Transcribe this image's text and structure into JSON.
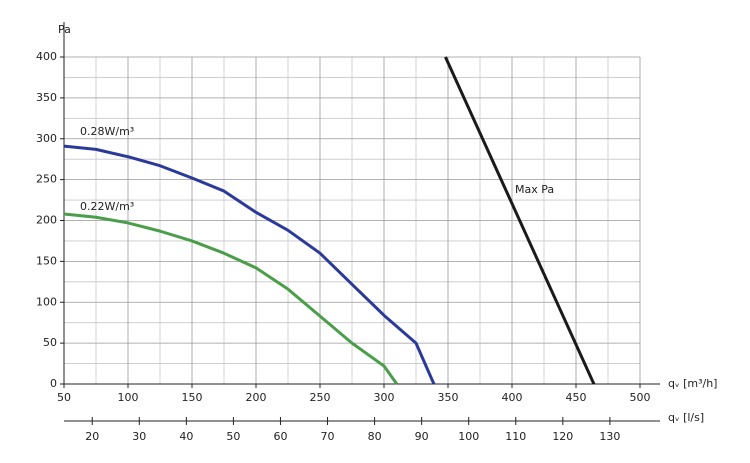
{
  "chart_data": {
    "type": "line",
    "y_label": "Pa",
    "x_label": "qᵥ [m³/h]",
    "x2_label": "qᵥ [l/s]",
    "xlim": [
      50,
      500
    ],
    "xticks": [
      50,
      100,
      150,
      200,
      250,
      300,
      350,
      400,
      450,
      500
    ],
    "xminorticks": [
      75,
      125,
      175,
      225,
      275,
      325,
      375,
      425,
      475
    ],
    "ylim": [
      0,
      400
    ],
    "yticks": [
      0,
      50,
      100,
      150,
      200,
      250,
      300,
      350,
      400
    ],
    "yminorticks": [
      25,
      75,
      125,
      175,
      225,
      275,
      325,
      375
    ],
    "x2lim": [
      14,
      136.4
    ],
    "x2ticks": [
      20,
      30,
      40,
      50,
      60,
      70,
      80,
      90,
      100,
      110,
      120,
      130
    ],
    "grid": true,
    "series": [
      {
        "name": "0.28W/m³",
        "color": "#2b3a9a",
        "x": [
          50,
          75,
          100,
          125,
          150,
          175,
          200,
          225,
          250,
          275,
          300,
          325,
          339
        ],
        "values": [
          291,
          287,
          278,
          267,
          252,
          236,
          210,
          188,
          160,
          122,
          84,
          50,
          0
        ]
      },
      {
        "name": "0.22W/m³",
        "color": "#4a9e4a",
        "x": [
          50,
          75,
          100,
          125,
          150,
          175,
          200,
          225,
          250,
          275,
          300,
          310
        ],
        "values": [
          208,
          204,
          197,
          187,
          175,
          160,
          142,
          116,
          83,
          50,
          22,
          0
        ]
      },
      {
        "name": "Max Pa",
        "color": "#1a1a1a",
        "x": [
          348,
          406,
          464
        ],
        "values": [
          400,
          200,
          0
        ]
      }
    ]
  }
}
